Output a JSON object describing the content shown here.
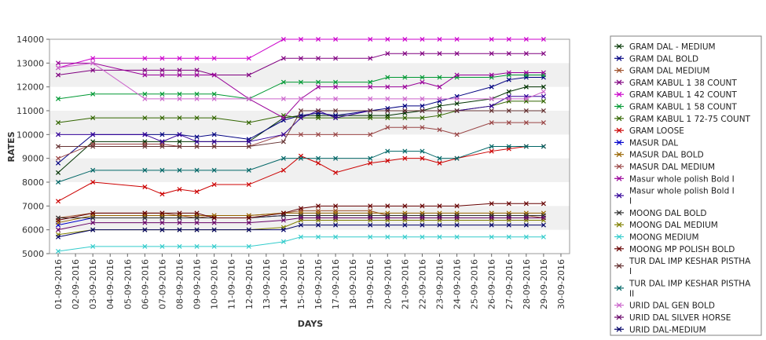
{
  "chart_data": {
    "type": "line",
    "title": "",
    "xlabel": "DAYS",
    "ylabel": "RATES",
    "ylim": [
      5000,
      14000
    ],
    "y_ticks": [
      5000,
      6000,
      7000,
      8000,
      9000,
      10000,
      11000,
      12000,
      13000,
      14000
    ],
    "grid": "alternating horizontal bands",
    "legend_position": "right",
    "x_labels": [
      "01-09-2016",
      "02-09-2016",
      "03-09-2016",
      "04-09-2016",
      "05-09-2016",
      "06-09-2016",
      "07-09-2016",
      "08-09-2016",
      "09-09-2016",
      "10-09-2016",
      "11-09-2016",
      "12-09-2016",
      "13-09-2016",
      "14-09-2016",
      "15-09-2016",
      "16-09-2016",
      "17-09-2016",
      "18-09-2016",
      "19-09-2016",
      "20-09-2016",
      "21-09-2016",
      "22-09-2016",
      "23-09-2016",
      "24-09-2016",
      "25-09-2016",
      "26-09-2016",
      "27-09-2016",
      "28-09-2016",
      "29-09-2016",
      "30-09-2016"
    ],
    "series_days": [
      "01-09-2016",
      "03-09-2016",
      "06-09-2016",
      "07-09-2016",
      "08-09-2016",
      "09-09-2016",
      "10-09-2016",
      "12-09-2016",
      "14-09-2016",
      "15-09-2016",
      "16-09-2016",
      "17-09-2016",
      "19-09-2016",
      "20-09-2016",
      "21-09-2016",
      "22-09-2016",
      "23-09-2016",
      "24-09-2016",
      "26-09-2016",
      "27-09-2016",
      "28-09-2016",
      "29-09-2016"
    ],
    "series": [
      {
        "name": "GRAM DAL - MEDIUM",
        "color": "#003300",
        "values": [
          8400,
          9700,
          9700,
          9700,
          9700,
          9700,
          9700,
          9700,
          10700,
          10800,
          10800,
          10800,
          10800,
          10800,
          10900,
          11000,
          11200,
          11300,
          11500,
          11800,
          12000,
          12000
        ]
      },
      {
        "name": "GRAM DAL BOLD",
        "color": "#000080",
        "values": [
          8800,
          10000,
          10000,
          10000,
          10000,
          9900,
          10000,
          9800,
          10600,
          10800,
          10900,
          10800,
          11000,
          11100,
          11200,
          11200,
          11400,
          11600,
          12000,
          12300,
          12400,
          12400
        ]
      },
      {
        "name": "GRAM DAL MEDIUM",
        "color": "#a0522d",
        "values": [
          6500,
          6700,
          6700,
          6700,
          6600,
          6500,
          6600,
          6600,
          6700,
          6800,
          6800,
          6800,
          6800,
          6600,
          6600,
          6600,
          6600,
          6600,
          6600,
          6600,
          6600,
          6500
        ]
      },
      {
        "name": "GRAM KABUL 1 38 COUNT",
        "color": "#800080",
        "values": [
          12500,
          12700,
          12700,
          12700,
          12700,
          12700,
          12500,
          12500,
          13200,
          13200,
          13200,
          13200,
          13200,
          13400,
          13400,
          13400,
          13400,
          13400,
          13400,
          13400,
          13400,
          13400
        ]
      },
      {
        "name": "GRAM KABUL 1 42 COUNT",
        "color": "#cc00cc",
        "values": [
          12800,
          13200,
          13200,
          13200,
          13200,
          13200,
          13200,
          13200,
          14000,
          14000,
          14000,
          14000,
          14000,
          14000,
          14000,
          14000,
          14000,
          14000,
          14000,
          14000,
          14000,
          14000
        ]
      },
      {
        "name": "GRAM KABUL 1 58 COUNT",
        "color": "#009933",
        "values": [
          11500,
          11700,
          11700,
          11700,
          11700,
          11700,
          11700,
          11500,
          12200,
          12200,
          12200,
          12200,
          12200,
          12400,
          12400,
          12400,
          12400,
          12400,
          12400,
          12500,
          12500,
          12500
        ]
      },
      {
        "name": "GRAM KABUL 1 72-75 COUNT",
        "color": "#336600",
        "values": [
          10500,
          10700,
          10700,
          10700,
          10700,
          10700,
          10700,
          10500,
          10800,
          10700,
          10700,
          10700,
          10700,
          10700,
          10700,
          10700,
          10800,
          11000,
          11200,
          11400,
          11400,
          11400
        ]
      },
      {
        "name": "GRAM LOOSE",
        "color": "#cc0000",
        "values": [
          7200,
          8000,
          7800,
          7500,
          7700,
          7600,
          7900,
          7900,
          8500,
          9100,
          8800,
          8400,
          8800,
          8900,
          9000,
          9000,
          8800,
          9000,
          9300,
          9400,
          9500,
          9500
        ]
      },
      {
        "name": "MASUR DAL",
        "color": "#0000cc",
        "values": [
          6200,
          6500,
          6500,
          6500,
          6500,
          6500,
          6500,
          6500,
          6600,
          6600,
          6600,
          6600,
          6600,
          6600,
          6600,
          6600,
          6600,
          6600,
          6600,
          6600,
          6600,
          6600
        ]
      },
      {
        "name": "MASUR DAL BOLD",
        "color": "#996600",
        "values": [
          6300,
          6600,
          6600,
          6600,
          6600,
          6600,
          6600,
          6600,
          6700,
          6700,
          6700,
          6700,
          6700,
          6700,
          6700,
          6700,
          6700,
          6700,
          6700,
          6700,
          6700,
          6700
        ]
      },
      {
        "name": "MASUR DAL MEDIUM",
        "color": "#994444",
        "values": [
          9000,
          9600,
          9600,
          9600,
          9500,
          9500,
          9500,
          9500,
          10000,
          10000,
          10000,
          10000,
          10000,
          10300,
          10300,
          10300,
          10200,
          10000,
          10500,
          10500,
          10500,
          10500
        ]
      },
      {
        "name": "Masur whole polish Bold I",
        "color": "#990099",
        "values": [
          13000,
          13000,
          12500,
          12500,
          12500,
          12500,
          12500,
          11500,
          10700,
          11500,
          12000,
          12000,
          12000,
          12000,
          12000,
          12200,
          12000,
          12500,
          12500,
          12600,
          12600,
          12600
        ]
      },
      {
        "name": "Masur whole polish Bold I I",
        "color": "#330099",
        "values": [
          10000,
          10000,
          10000,
          9700,
          10000,
          9700,
          9700,
          9700,
          10000,
          10700,
          11000,
          10700,
          11000,
          11000,
          11000,
          11000,
          11000,
          11000,
          11200,
          11600,
          11600,
          11600
        ]
      },
      {
        "name": "MOONG DAL BOLD",
        "color": "#333333",
        "values": [
          6500,
          6500,
          6500,
          6500,
          6500,
          6500,
          6500,
          6500,
          6600,
          6600,
          6600,
          6600,
          6600,
          6600,
          6600,
          6600,
          6600,
          6600,
          6600,
          6600,
          6600,
          6600
        ]
      },
      {
        "name": "MOONG DAL MEDIUM",
        "color": "#808000",
        "values": [
          5800,
          6000,
          6000,
          6000,
          6000,
          6000,
          6000,
          6000,
          6100,
          6400,
          6400,
          6400,
          6400,
          6400,
          6400,
          6400,
          6400,
          6400,
          6400,
          6400,
          6400,
          6400
        ]
      },
      {
        "name": "MOONG MEDIUM",
        "color": "#33cccc",
        "values": [
          5100,
          5300,
          5300,
          5300,
          5300,
          5300,
          5300,
          5300,
          5500,
          5700,
          5700,
          5700,
          5700,
          5700,
          5700,
          5700,
          5700,
          5700,
          5700,
          5700,
          5700,
          5700
        ]
      },
      {
        "name": "MOONG MP POLISH BOLD",
        "color": "#660000",
        "values": [
          6400,
          6700,
          6700,
          6700,
          6700,
          6700,
          6500,
          6500,
          6700,
          6900,
          7000,
          7000,
          7000,
          7000,
          7000,
          7000,
          7000,
          7000,
          7100,
          7100,
          7100,
          7100
        ]
      },
      {
        "name": "TUR DAL IMP KESHAR PISTHA I",
        "color": "#663333",
        "values": [
          9500,
          9500,
          9500,
          9500,
          9500,
          9500,
          9500,
          9500,
          9700,
          11000,
          11000,
          11000,
          11000,
          11000,
          11000,
          11000,
          11000,
          11000,
          11000,
          11000,
          11000,
          11000
        ]
      },
      {
        "name": "TUR DAL IMP KESHAR PISTHA II",
        "color": "#006666",
        "values": [
          8000,
          8500,
          8500,
          8500,
          8500,
          8500,
          8500,
          8500,
          9000,
          9000,
          9000,
          9000,
          9000,
          9300,
          9300,
          9300,
          9000,
          9000,
          9500,
          9500,
          9500,
          9500
        ]
      },
      {
        "name": "URID DAL GEN BOLD",
        "color": "#cc66cc",
        "values": [
          12800,
          13000,
          11500,
          11500,
          11500,
          11500,
          11500,
          11500,
          11500,
          11500,
          11500,
          11500,
          11500,
          11500,
          11500,
          11500,
          11500,
          11500,
          11500,
          11500,
          11500,
          11800
        ]
      },
      {
        "name": "URID DAL SILVER HORSE",
        "color": "#660066",
        "values": [
          6000,
          6300,
          6300,
          6300,
          6300,
          6300,
          6300,
          6300,
          6400,
          6500,
          6500,
          6500,
          6500,
          6500,
          6500,
          6500,
          6500,
          6500,
          6500,
          6500,
          6500,
          6500
        ]
      },
      {
        "name": "URID DAL-MEDIUM",
        "color": "#000066",
        "values": [
          5700,
          6000,
          6000,
          6000,
          6000,
          6000,
          6000,
          6000,
          6000,
          6200,
          6200,
          6200,
          6200,
          6200,
          6200,
          6200,
          6200,
          6200,
          6200,
          6200,
          6200,
          6200
        ]
      }
    ]
  }
}
